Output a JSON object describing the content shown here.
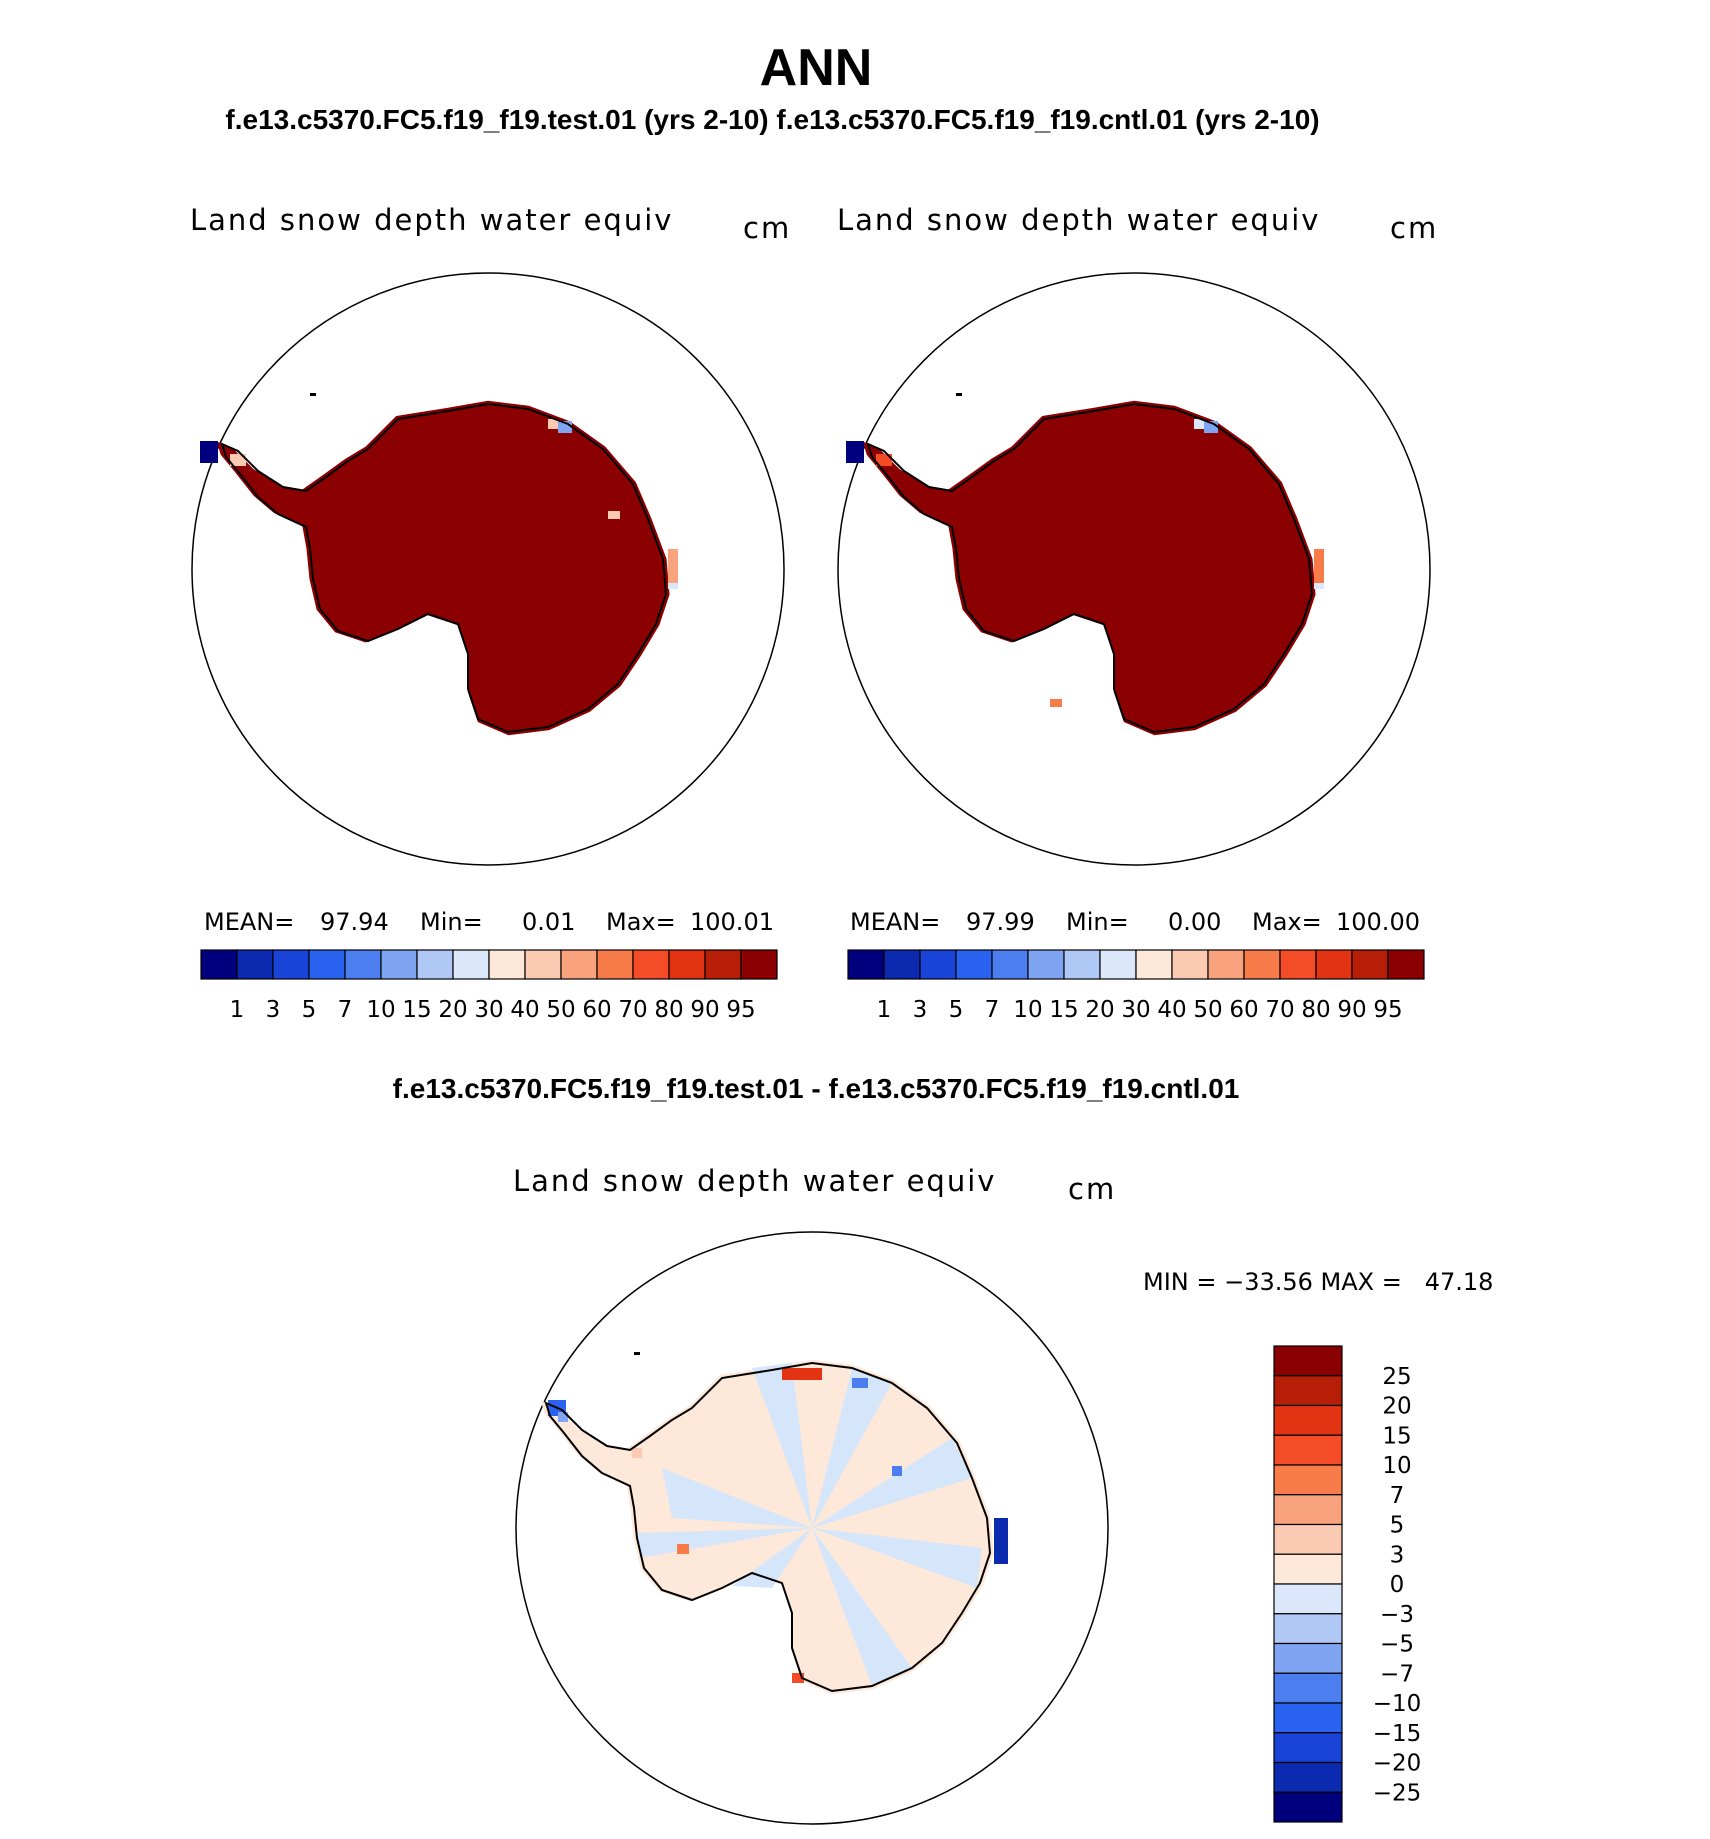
{
  "main_title": "ANN",
  "subtitle": "f.e13.c5370.FC5.f19_f19.test.01 (yrs 2-10) f.e13.c5370.FC5.f19_f19.cntl.01 (yrs 2-10)",
  "panels": {
    "test": {
      "variable": "Land snow depth water equiv",
      "units": "cm",
      "mean_label": "MEAN=",
      "mean_value": "97.94",
      "min_label": "Min=",
      "min_value": "0.01",
      "max_label": "Max=",
      "max_value": "100.01"
    },
    "control": {
      "variable": "Land snow depth water equiv",
      "units": "cm",
      "mean_label": "MEAN=",
      "mean_value": "97.99",
      "min_label": "Min=",
      "min_value": "0.00",
      "max_label": "Max=",
      "max_value": "100.00"
    },
    "difference": {
      "title": "f.e13.c5370.FC5.f19_f19.test.01 - f.e13.c5370.FC5.f19_f19.cntl.01",
      "variable": "Land snow depth water equiv",
      "units": "cm",
      "stats": "MIN = −33.56 MAX =   47.18"
    }
  },
  "colorbars": {
    "field_labels": [
      "1",
      "3",
      "5",
      "7",
      "10",
      "15",
      "20",
      "30",
      "40",
      "50",
      "60",
      "70",
      "80",
      "90",
      "95"
    ],
    "field_colors": [
      "#00007f",
      "#0c2ab0",
      "#1a44d8",
      "#2a62f0",
      "#4c7ef0",
      "#7ea4f2",
      "#b0c8f6",
      "#dbe7fb",
      "#fde8d9",
      "#fbcab2",
      "#f9a27e",
      "#f77c4a",
      "#f34c26",
      "#e23412",
      "#b61e08",
      "#8b0000"
    ],
    "diff_labels": [
      "25",
      "20",
      "15",
      "10",
      "7",
      "5",
      "3",
      "0",
      "−3",
      "−5",
      "−7",
      "−10",
      "−15",
      "−20",
      "−25"
    ],
    "diff_colors": [
      "#8b0000",
      "#b61e08",
      "#e23412",
      "#f34c26",
      "#f77c4a",
      "#f9a27e",
      "#fbcab2",
      "#fde8d9",
      "#dbe7fb",
      "#b0c8f6",
      "#7ea4f2",
      "#4c7ef0",
      "#2a62f0",
      "#1a44d8",
      "#0c2ab0",
      "#00007f"
    ]
  },
  "colors": {
    "snow_full": "#8b0000",
    "diff_pos": "#fde8d9",
    "diff_neg": "#d6e6fa"
  }
}
